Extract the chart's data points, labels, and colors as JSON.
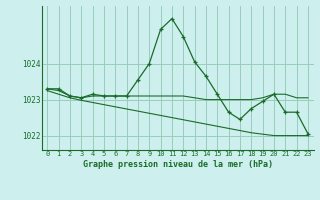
{
  "title": "Graphe pression niveau de la mer (hPa)",
  "background_color": "#cdf0ee",
  "grid_color": "#99ccbb",
  "line_color": "#1a6b2a",
  "x_labels": [
    "0",
    "1",
    "2",
    "3",
    "4",
    "5",
    "6",
    "7",
    "8",
    "9",
    "10",
    "11",
    "12",
    "13",
    "14",
    "15",
    "16",
    "17",
    "18",
    "19",
    "20",
    "21",
    "22",
    "23"
  ],
  "ylim": [
    1021.6,
    1025.6
  ],
  "yticks": [
    1022,
    1023,
    1024
  ],
  "series1": [
    1023.3,
    1023.3,
    1023.1,
    1023.05,
    1023.15,
    1023.1,
    1023.1,
    1023.1,
    1023.55,
    1024.0,
    1024.95,
    1025.25,
    1024.75,
    1024.05,
    1023.65,
    1023.15,
    1022.65,
    1022.45,
    1022.75,
    1022.95,
    1023.15,
    1022.65,
    1022.65,
    1022.05
  ],
  "series2": [
    1023.3,
    1023.25,
    1023.1,
    1023.05,
    1023.1,
    1023.1,
    1023.1,
    1023.1,
    1023.1,
    1023.1,
    1023.1,
    1023.1,
    1023.1,
    1023.05,
    1023.0,
    1023.0,
    1023.0,
    1023.0,
    1023.0,
    1023.05,
    1023.15,
    1023.15,
    1023.05,
    1023.05
  ],
  "series3": [
    1023.25,
    1023.15,
    1023.05,
    1022.98,
    1022.92,
    1022.86,
    1022.8,
    1022.74,
    1022.68,
    1022.62,
    1022.56,
    1022.5,
    1022.44,
    1022.38,
    1022.32,
    1022.26,
    1022.2,
    1022.14,
    1022.08,
    1022.04,
    1022.0,
    1022.0,
    1022.0,
    1022.0
  ]
}
